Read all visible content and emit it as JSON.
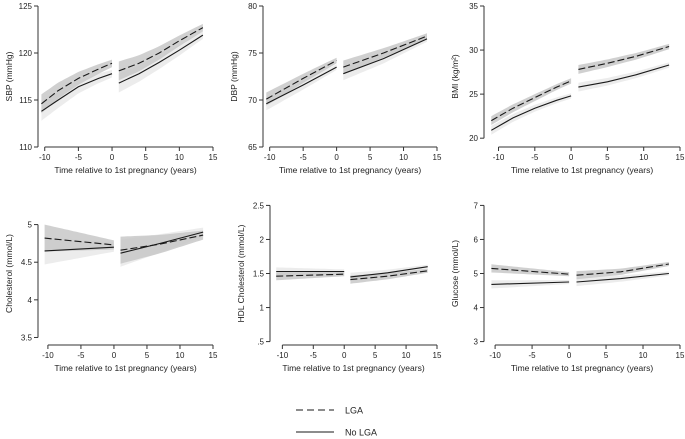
{
  "chart_data": [
    {
      "type": "line",
      "ylabel": "SBP (mmHg)",
      "xlabel": "Time relative to 1st pregnancy (years)",
      "xlim": [
        -11,
        15
      ],
      "xticks": [
        -10,
        -5,
        0,
        5,
        10,
        15
      ],
      "xtick_labels": [
        "-10",
        "-5",
        "0",
        "5",
        "10",
        "15"
      ],
      "ylim": [
        110,
        125
      ],
      "yticks": [
        110,
        115,
        120,
        125
      ],
      "ytick_labels": [
        "110",
        "115",
        "120",
        "125"
      ],
      "ci_band": [
        1.0,
        0.4
      ],
      "series": [
        {
          "name": "LGA",
          "segments": [
            {
              "x": [
                -10.5,
                -8,
                -5,
                -2,
                0
              ],
              "y": [
                114.6,
                116.0,
                117.3,
                118.3,
                118.9
              ]
            },
            {
              "x": [
                1,
                4,
                7,
                10,
                13.5
              ],
              "y": [
                118.1,
                118.9,
                120.0,
                121.3,
                122.7
              ]
            }
          ]
        },
        {
          "name": "No LGA",
          "segments": [
            {
              "x": [
                -10.5,
                -8,
                -5,
                -2,
                0
              ],
              "y": [
                113.8,
                115.0,
                116.4,
                117.3,
                117.8
              ]
            },
            {
              "x": [
                1,
                4,
                7,
                10,
                13.5
              ],
              "y": [
                116.8,
                117.8,
                119.0,
                120.3,
                121.9
              ]
            }
          ]
        }
      ]
    },
    {
      "type": "line",
      "ylabel": "DBP (mmHg)",
      "xlabel": "Time relative to 1st pregnancy (years)",
      "xlim": [
        -11,
        15
      ],
      "xticks": [
        -10,
        -5,
        0,
        5,
        10,
        15
      ],
      "xtick_labels": [
        "-10",
        "-5",
        "0",
        "5",
        "10",
        "15"
      ],
      "ylim": [
        65,
        80
      ],
      "yticks": [
        65,
        70,
        75,
        80
      ],
      "ytick_labels": [
        "65",
        "70",
        "75",
        "80"
      ],
      "ci_band": [
        0.7,
        0.3
      ],
      "series": [
        {
          "name": "LGA",
          "segments": [
            {
              "x": [
                -10.5,
                -5,
                0
              ],
              "y": [
                70.1,
                72.3,
                74.2
              ]
            },
            {
              "x": [
                1,
                7,
                13.5
              ],
              "y": [
                73.5,
                75.0,
                76.8
              ]
            }
          ]
        },
        {
          "name": "No LGA",
          "segments": [
            {
              "x": [
                -10.5,
                -5,
                0
              ],
              "y": [
                69.6,
                71.6,
                73.5
              ]
            },
            {
              "x": [
                1,
                7,
                13.5
              ],
              "y": [
                72.8,
                74.4,
                76.5
              ]
            }
          ]
        }
      ]
    },
    {
      "type": "line",
      "ylabel": "BMI (kg/m²)",
      "xlabel": "Time relative to 1st pregnancy (years)",
      "xlim": [
        -12,
        15
      ],
      "xticks": [
        -10,
        -5,
        0,
        5,
        10,
        15
      ],
      "xtick_labels": [
        "-10",
        "-5",
        "0",
        "5",
        "10",
        "15"
      ],
      "ylim": [
        19,
        35
      ],
      "yticks": [
        20,
        25,
        30,
        35
      ],
      "ytick_labels": [
        "20",
        "25",
        "30",
        "35"
      ],
      "ci_band": [
        0.5,
        0.3
      ],
      "series": [
        {
          "name": "LGA",
          "segments": [
            {
              "x": [
                -11,
                -8,
                -5,
                -2,
                0
              ],
              "y": [
                22.0,
                23.4,
                24.6,
                25.8,
                26.5
              ]
            },
            {
              "x": [
                1,
                5,
                9,
                13.5
              ],
              "y": [
                27.8,
                28.5,
                29.3,
                30.4
              ]
            }
          ]
        },
        {
          "name": "No LGA",
          "segments": [
            {
              "x": [
                -11,
                -8,
                -5,
                -2,
                0
              ],
              "y": [
                20.9,
                22.3,
                23.4,
                24.3,
                24.8
              ]
            },
            {
              "x": [
                1,
                5,
                9,
                13.5
              ],
              "y": [
                25.8,
                26.4,
                27.2,
                28.3
              ]
            }
          ]
        }
      ]
    },
    {
      "type": "line",
      "ylabel": "Cholesterol (mmol/L)",
      "xlabel": "Time relative to 1st pregnancy (years)",
      "xlim": [
        -11.5,
        15
      ],
      "xticks": [
        -10,
        -5,
        0,
        5,
        10,
        15
      ],
      "xtick_labels": [
        "-10",
        "-5",
        "0",
        "5",
        "10",
        "15"
      ],
      "ylim": [
        3.4,
        5.3
      ],
      "yticks": [
        3.5,
        4,
        4.5,
        5
      ],
      "ytick_labels": [
        "3.5",
        "4",
        "4.5",
        "5"
      ],
      "ci_band": [
        0.18,
        0.06
      ],
      "series": [
        {
          "name": "LGA",
          "segments": [
            {
              "x": [
                -10.5,
                0
              ],
              "y": [
                4.82,
                4.73
              ]
            },
            {
              "x": [
                1,
                7,
                13.5
              ],
              "y": [
                4.66,
                4.74,
                4.86
              ]
            }
          ]
        },
        {
          "name": "No LGA",
          "segments": [
            {
              "x": [
                -10.5,
                0
              ],
              "y": [
                4.65,
                4.7
              ]
            },
            {
              "x": [
                1,
                7,
                13.5
              ],
              "y": [
                4.62,
                4.75,
                4.9
              ]
            }
          ]
        }
      ]
    },
    {
      "type": "line",
      "ylabel": "HDL Cholesterol (mmol/L)",
      "xlabel": "Time relative to 1st pregnancy (years)",
      "xlim": [
        -12,
        15
      ],
      "xticks": [
        -10,
        -5,
        0,
        5,
        10,
        15
      ],
      "xtick_labels": [
        "-10",
        "-5",
        "0",
        "5",
        "10",
        "15"
      ],
      "ylim": [
        0.45,
        2.55
      ],
      "yticks": [
        0.5,
        1,
        1.5,
        2,
        2.5
      ],
      "ytick_labels": [
        ".5",
        "1",
        "1.5",
        "2",
        "2.5"
      ],
      "ci_band": [
        0.06,
        0.03
      ],
      "series": [
        {
          "name": "LGA",
          "segments": [
            {
              "x": [
                -11,
                0
              ],
              "y": [
                1.46,
                1.49
              ]
            },
            {
              "x": [
                1,
                7,
                13.5
              ],
              "y": [
                1.41,
                1.46,
                1.54
              ]
            }
          ]
        },
        {
          "name": "No LGA",
          "segments": [
            {
              "x": [
                -11,
                0
              ],
              "y": [
                1.53,
                1.53
              ]
            },
            {
              "x": [
                1,
                7,
                13.5
              ],
              "y": [
                1.45,
                1.51,
                1.6
              ]
            }
          ]
        }
      ]
    },
    {
      "type": "line",
      "ylabel": "Glucose (mmol/L)",
      "xlabel": "Time relative to 1st pregnancy (years)",
      "xlim": [
        -11.5,
        15
      ],
      "xticks": [
        -10,
        -5,
        0,
        5,
        10,
        15
      ],
      "xtick_labels": [
        "-10",
        "-5",
        "0",
        "5",
        "10",
        "15"
      ],
      "ylim": [
        2.9,
        7.1
      ],
      "yticks": [
        3,
        4,
        5,
        6,
        7
      ],
      "ytick_labels": [
        "3",
        "4",
        "5",
        "6",
        "7"
      ],
      "ci_band": [
        0.12,
        0.06
      ],
      "series": [
        {
          "name": "LGA",
          "segments": [
            {
              "x": [
                -10.5,
                0
              ],
              "y": [
                5.15,
                4.98
              ]
            },
            {
              "x": [
                1,
                7,
                13.5
              ],
              "y": [
                4.95,
                5.05,
                5.28
              ]
            }
          ]
        },
        {
          "name": "No LGA",
          "segments": [
            {
              "x": [
                -10.5,
                0
              ],
              "y": [
                4.68,
                4.75
              ]
            },
            {
              "x": [
                1,
                7,
                13.5
              ],
              "y": [
                4.75,
                4.85,
                5.0
              ]
            }
          ]
        }
      ]
    }
  ],
  "legend": {
    "items": [
      {
        "label": "LGA",
        "style": "dashed"
      },
      {
        "label": "No LGA",
        "style": "solid"
      }
    ]
  },
  "colors": {
    "line": "#1a1a1a",
    "band": "#c8c8c8",
    "axis": "#333333"
  }
}
